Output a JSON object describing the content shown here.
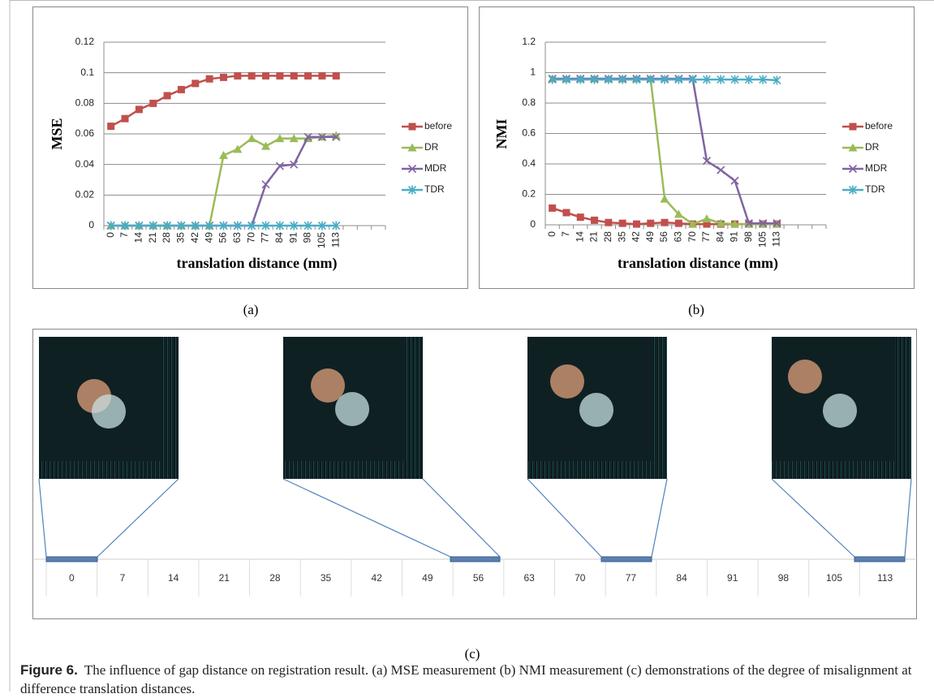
{
  "chart_data": [
    {
      "type": "line",
      "ylabel": "MSE",
      "xlabel": "translation distance (mm)",
      "categories": [
        "0",
        "7",
        "14",
        "21",
        "28",
        "35",
        "42",
        "49",
        "56",
        "63",
        "70",
        "77",
        "84",
        "91",
        "98",
        "105",
        "113",
        null,
        null,
        null
      ],
      "ylim": [
        0,
        0.12
      ],
      "yticks": [
        0,
        0.02,
        0.04,
        0.06,
        0.08,
        0.1,
        0.12
      ],
      "grid": true,
      "legend": "right",
      "series": [
        {
          "name": "before",
          "color": "#c0504d",
          "marker": "square",
          "values": [
            0.065,
            0.07,
            0.076,
            0.08,
            0.085,
            0.089,
            0.093,
            0.096,
            0.097,
            0.098,
            0.098,
            0.098,
            0.098,
            0.098,
            0.098,
            0.098,
            0.098,
            null,
            null,
            null
          ]
        },
        {
          "name": "DR",
          "color": "#9bbb59",
          "marker": "triangle",
          "values": [
            0,
            0,
            0,
            0,
            0,
            0,
            0,
            0,
            0.046,
            0.05,
            0.057,
            0.052,
            0.057,
            0.057,
            0.057,
            0.058,
            0.059,
            null,
            null,
            null
          ]
        },
        {
          "name": "MDR",
          "color": "#8064a2",
          "marker": "x",
          "values": [
            0,
            0,
            0,
            0,
            0,
            0,
            0,
            0,
            0,
            0,
            0,
            0.027,
            0.039,
            0.04,
            0.058,
            0.058,
            0.058,
            null,
            null,
            null
          ]
        },
        {
          "name": "TDR",
          "color": "#4bacc6",
          "marker": "star",
          "values": [
            0,
            0,
            0,
            0,
            0,
            0,
            0,
            0,
            0,
            0,
            0,
            0,
            0,
            0,
            0,
            0,
            0,
            null,
            null,
            null
          ]
        }
      ]
    },
    {
      "type": "line",
      "ylabel": "NMI",
      "xlabel": "translation distance (mm)",
      "categories": [
        "0",
        "7",
        "14",
        "21",
        "28",
        "35",
        "42",
        "49",
        "56",
        "63",
        "70",
        "77",
        "84",
        "91",
        "98",
        "105",
        "113",
        null,
        null,
        null
      ],
      "ylim": [
        0,
        1.2
      ],
      "yticks": [
        0,
        0.2,
        0.4,
        0.6,
        0.8,
        1,
        1.2
      ],
      "grid": true,
      "legend": "right",
      "series": [
        {
          "name": "before",
          "color": "#c0504d",
          "marker": "square",
          "values": [
            0.11,
            0.08,
            0.05,
            0.03,
            0.015,
            0.01,
            0.005,
            0.01,
            0.015,
            0.01,
            0.005,
            0.005,
            0.005,
            0.005,
            0.005,
            0.005,
            0.005,
            null,
            null,
            null
          ]
        },
        {
          "name": "DR",
          "color": "#9bbb59",
          "marker": "triangle",
          "values": [
            0.96,
            0.96,
            0.96,
            0.96,
            0.96,
            0.96,
            0.96,
            0.96,
            0.17,
            0.07,
            0.005,
            0.04,
            0.01,
            0.005,
            0.005,
            0.005,
            0.005,
            null,
            null,
            null
          ]
        },
        {
          "name": "MDR",
          "color": "#8064a2",
          "marker": "x",
          "values": [
            0.96,
            0.96,
            0.96,
            0.96,
            0.96,
            0.96,
            0.96,
            0.96,
            0.96,
            0.96,
            0.96,
            0.42,
            0.36,
            0.29,
            0.01,
            0.01,
            0.01,
            null,
            null,
            null
          ]
        },
        {
          "name": "TDR",
          "color": "#4bacc6",
          "marker": "star",
          "values": [
            0.955,
            0.955,
            0.955,
            0.955,
            0.955,
            0.955,
            0.955,
            0.955,
            0.955,
            0.955,
            0.955,
            0.955,
            0.955,
            0.955,
            0.955,
            0.955,
            0.95,
            null,
            null,
            null
          ]
        }
      ]
    }
  ],
  "panel_labels": [
    "(a)",
    "(b)",
    "(c)"
  ],
  "strip_labels": [
    "0",
    "7",
    "14",
    "21",
    "28",
    "35",
    "42",
    "49",
    "56",
    "63",
    "70",
    "77",
    "84",
    "91",
    "98",
    "105",
    "113"
  ],
  "caption": {
    "title": "Figure 6.",
    "text": "The influence of gap distance on registration result. (a) MSE measurement (b) NMI measurement (c) demonstrations of the degree of misalignment at difference translation distances."
  }
}
